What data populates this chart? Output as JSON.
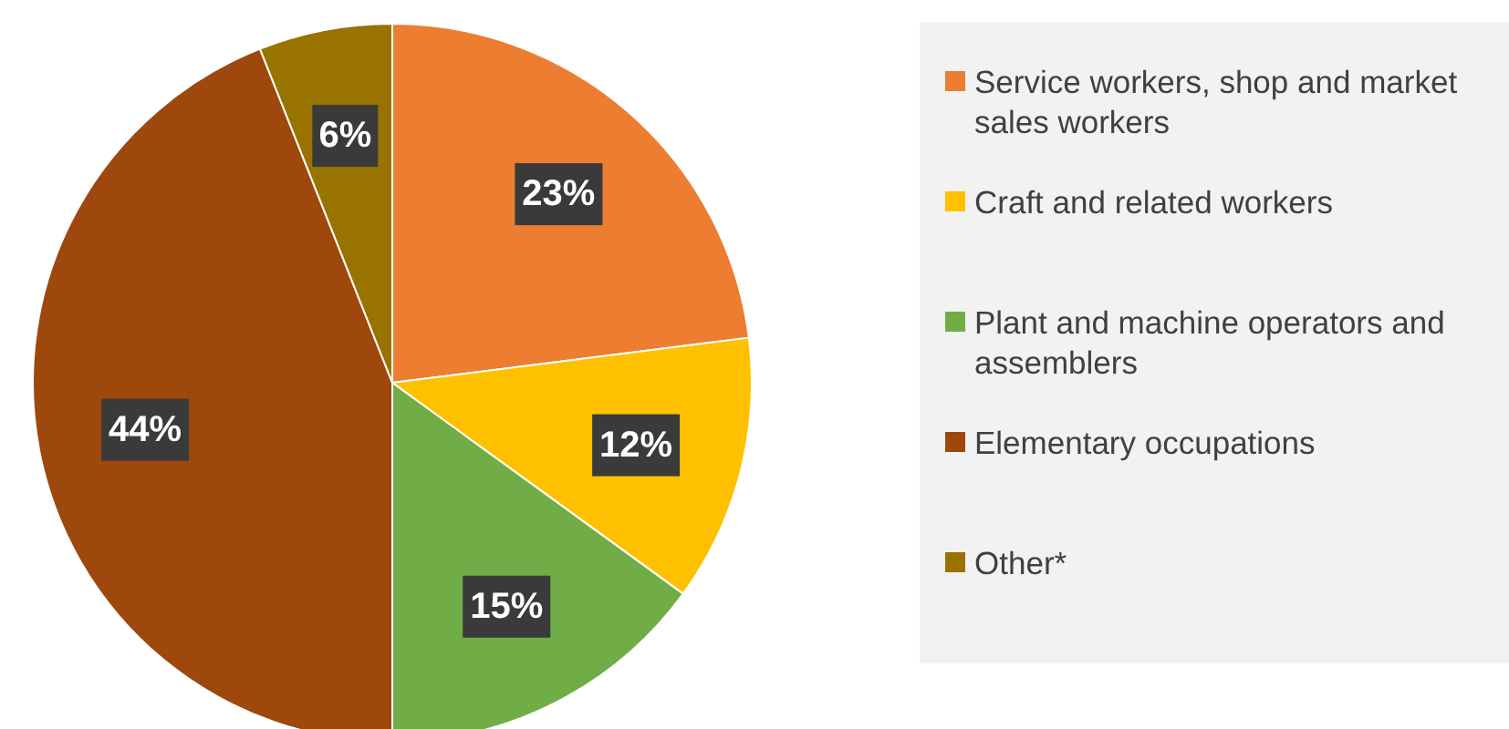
{
  "chart_data": {
    "type": "pie",
    "categories": [
      "Service workers, shop and market sales workers",
      "Craft and related workers",
      "Plant and machine operators and assemblers",
      "Elementary occupations",
      "Other*"
    ],
    "values": [
      23,
      12,
      15,
      44,
      6
    ],
    "colors": [
      "#ed7d31",
      "#ffc000",
      "#70ad47",
      "#9e480e",
      "#997300"
    ],
    "value_labels": [
      "23%",
      "12%",
      "15%",
      "44%",
      "6%"
    ],
    "legend": "right"
  }
}
